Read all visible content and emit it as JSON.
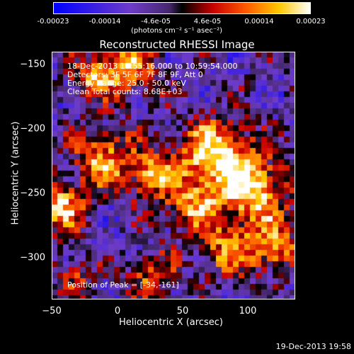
{
  "colorbar": {
    "ticks": [
      "-0.00023",
      "-0.00014",
      "-4.6e-05",
      "4.6e-05",
      "0.00014",
      "0.00023"
    ],
    "units": "(photons cm⁻² s⁻¹ asec⁻²)"
  },
  "title": "Reconstructed RHESSI Image",
  "info": {
    "time": "18-Dec-2013 10:55:16.000 to 10:59:54.000",
    "detectors": "Detectors: 3F 5F 6F 7F 8F 9F, Att 0",
    "energy": "Energy Range: 25.0 - 50.0 keV",
    "clean": "Clean    Total counts: 8.68E+03"
  },
  "peak": "Position of Peak = [-34,-161]",
  "axes": {
    "xlabel": "Heliocentric X (arcsec)",
    "ylabel": "Heliocentric Y (arcsec)",
    "xticks": [
      "−50",
      "0",
      "50",
      "100"
    ],
    "yticks": [
      "−150",
      "−200",
      "−250",
      "−300"
    ]
  },
  "timestamp": "19-Dec-2013 19:58"
}
